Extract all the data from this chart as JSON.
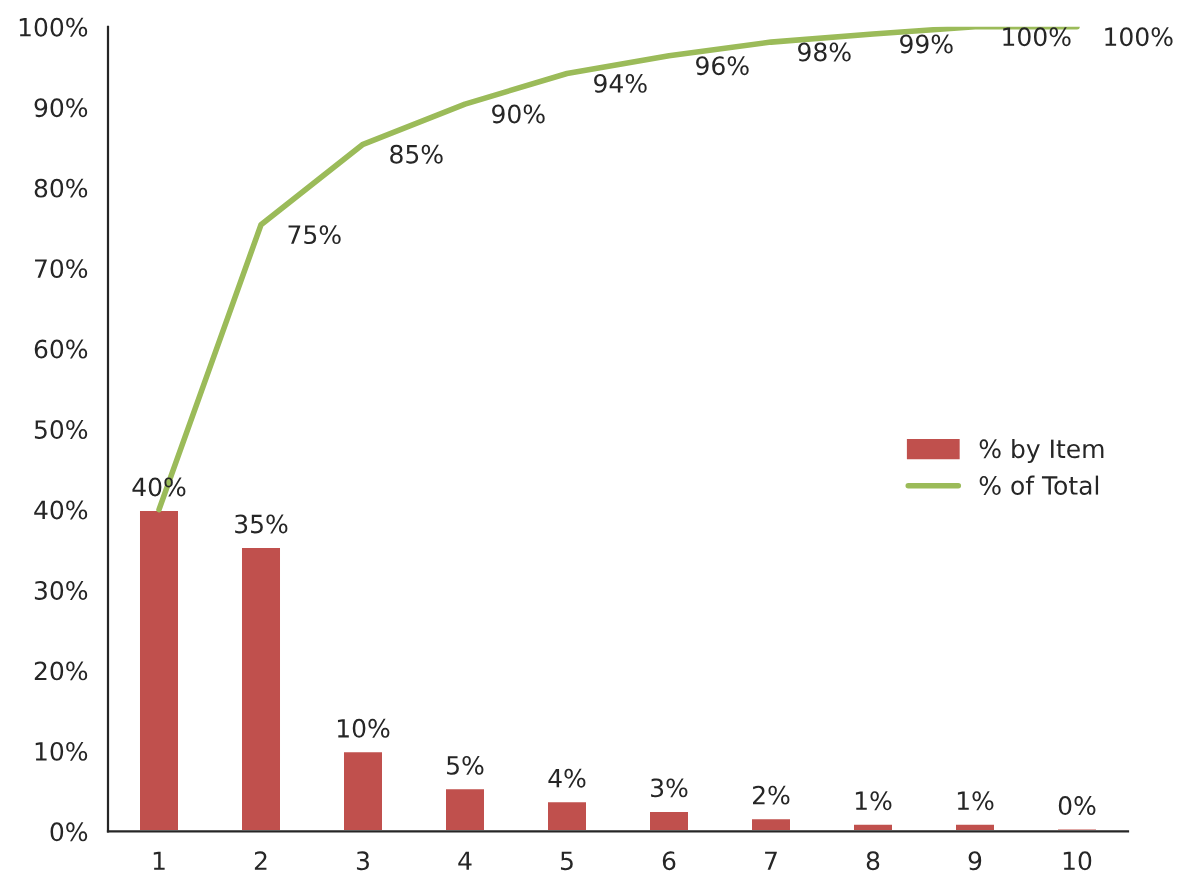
{
  "chart_data": {
    "type": "bar",
    "categories": [
      "1",
      "2",
      "3",
      "4",
      "5",
      "6",
      "7",
      "8",
      "9",
      "10"
    ],
    "series": [
      {
        "name": "% by Item",
        "color": "#c0504d",
        "values": [
          40,
          35.4,
          10,
          5.4,
          3.8,
          2.6,
          1.7,
          1,
          1,
          0.4
        ],
        "value_labels": [
          "40%",
          "35%",
          "10%",
          "5%",
          "4%",
          "3%",
          "2%",
          "1%",
          "1%",
          "0%"
        ]
      },
      {
        "name": "% of Total",
        "type": "line",
        "color": "#9bbb59",
        "values": [
          40,
          75.4,
          85.4,
          90.4,
          94.2,
          96.4,
          98.1,
          99.1,
          100,
          100
        ],
        "value_labels": [
          null,
          "75%",
          "85%",
          "90%",
          "94%",
          "96%",
          "98%",
          "99%",
          "100%",
          "100%"
        ]
      }
    ],
    "ylim": [
      0,
      100
    ],
    "yticks": [
      {
        "value": 0,
        "label": "0%"
      },
      {
        "value": 10,
        "label": "10%"
      },
      {
        "value": 20,
        "label": "20%"
      },
      {
        "value": 30,
        "label": "30%"
      },
      {
        "value": 40,
        "label": "40%"
      },
      {
        "value": 50,
        "label": "50%"
      },
      {
        "value": 60,
        "label": "60%"
      },
      {
        "value": 70,
        "label": "70%"
      },
      {
        "value": 80,
        "label": "80%"
      },
      {
        "value": 90,
        "label": "90%"
      },
      {
        "value": 100,
        "label": "100%"
      }
    ],
    "grid": false,
    "legend": "right",
    "marker": "none",
    "line_style": "solid"
  }
}
